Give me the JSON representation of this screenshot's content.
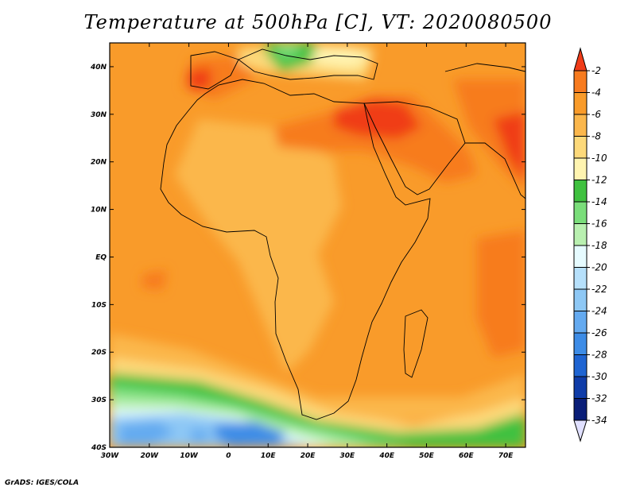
{
  "title": "Temperature at 500hPa [C], VT: 2020080500",
  "credit": "GrADS: IGES/COLA",
  "map": {
    "lon_range": [
      -30,
      75
    ],
    "lat_range": [
      -40,
      45
    ],
    "lon_ticks": [
      "30W",
      "20W",
      "10W",
      "0",
      "10E",
      "20E",
      "30E",
      "40E",
      "50E",
      "60E",
      "70E"
    ],
    "lat_ticks": [
      "40S",
      "30S",
      "20S",
      "10S",
      "EQ",
      "10N",
      "20N",
      "30N",
      "40N"
    ],
    "field": "Temperature at 500hPa"
  },
  "colorbar": {
    "labels": [
      "-2",
      "-4",
      "-6",
      "-8",
      "-10",
      "-12",
      "-14",
      "-16",
      "-18",
      "-20",
      "-22",
      "-24",
      "-26",
      "-28",
      "-30",
      "-32",
      "-34"
    ],
    "colors": [
      "#f03c19",
      "#f77b1f",
      "#f99b2a",
      "#fbb74c",
      "#fdd97a",
      "#fff4b0",
      "#3fc13f",
      "#7ade7a",
      "#b9f0b0",
      "#e6fbff",
      "#b6e0fb",
      "#8ec8f5",
      "#64aaf0",
      "#3d8ce6",
      "#1e64d2",
      "#0f3ca8",
      "#0a1e78"
    ],
    "top_arrow_color": "#f03c19",
    "bottom_arrow_color": "#e0e0ff"
  }
}
